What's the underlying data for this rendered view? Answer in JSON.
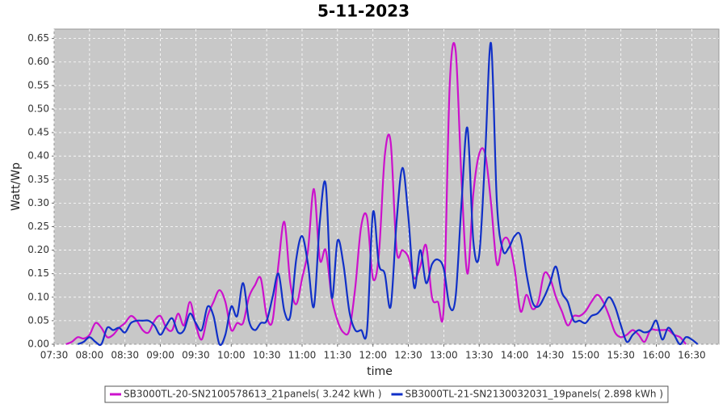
{
  "chart_data": {
    "type": "line",
    "title": "5-11-2023",
    "x_label": "time",
    "y_label": "Watt/Wp",
    "x": [
      "07:40",
      "07:45",
      "07:50",
      "07:55",
      "08:00",
      "08:05",
      "08:10",
      "08:15",
      "08:20",
      "08:25",
      "08:30",
      "08:35",
      "08:40",
      "08:45",
      "08:50",
      "08:55",
      "09:00",
      "09:05",
      "09:10",
      "09:15",
      "09:20",
      "09:25",
      "09:30",
      "09:35",
      "09:40",
      "09:45",
      "09:50",
      "09:55",
      "10:00",
      "10:05",
      "10:10",
      "10:15",
      "10:20",
      "10:25",
      "10:30",
      "10:35",
      "10:40",
      "10:45",
      "10:50",
      "10:55",
      "11:00",
      "11:05",
      "11:10",
      "11:15",
      "11:20",
      "11:25",
      "11:30",
      "11:35",
      "11:40",
      "11:45",
      "11:50",
      "11:55",
      "12:00",
      "12:05",
      "12:10",
      "12:15",
      "12:20",
      "12:25",
      "12:30",
      "12:35",
      "12:40",
      "12:45",
      "12:50",
      "12:55",
      "13:00",
      "13:05",
      "13:10",
      "13:15",
      "13:20",
      "13:25",
      "13:30",
      "13:35",
      "13:40",
      "13:45",
      "13:50",
      "13:55",
      "14:00",
      "14:05",
      "14:10",
      "14:15",
      "14:20",
      "14:25",
      "14:30",
      "14:35",
      "14:40",
      "14:45",
      "14:50",
      "14:55",
      "15:00",
      "15:05",
      "15:10",
      "15:15",
      "15:20",
      "15:25",
      "15:30",
      "15:35",
      "15:40",
      "15:45",
      "15:50",
      "15:55",
      "16:00",
      "16:05",
      "16:10",
      "16:15",
      "16:20",
      "16:25",
      "16:30",
      "16:35"
    ],
    "series": [
      {
        "name": "SB3000TL-20-SN2100578613_21panels( 3.242 kWh )",
        "color": "#cc11cc",
        "values": [
          0.0,
          0.005,
          0.015,
          0.012,
          0.02,
          0.045,
          0.035,
          0.015,
          0.02,
          0.035,
          0.045,
          0.06,
          0.05,
          0.03,
          0.025,
          0.05,
          0.06,
          0.035,
          0.03,
          0.065,
          0.04,
          0.09,
          0.04,
          0.01,
          0.06,
          0.09,
          0.115,
          0.09,
          0.03,
          0.045,
          0.045,
          0.1,
          0.125,
          0.14,
          0.06,
          0.05,
          0.17,
          0.26,
          0.13,
          0.085,
          0.14,
          0.2,
          0.33,
          0.18,
          0.2,
          0.1,
          0.05,
          0.025,
          0.03,
          0.12,
          0.25,
          0.27,
          0.14,
          0.19,
          0.4,
          0.43,
          0.2,
          0.2,
          0.185,
          0.14,
          0.165,
          0.21,
          0.1,
          0.09,
          0.08,
          0.55,
          0.625,
          0.35,
          0.15,
          0.32,
          0.405,
          0.405,
          0.3,
          0.17,
          0.22,
          0.22,
          0.16,
          0.07,
          0.105,
          0.075,
          0.09,
          0.15,
          0.14,
          0.1,
          0.07,
          0.04,
          0.06,
          0.06,
          0.07,
          0.09,
          0.105,
          0.09,
          0.06,
          0.025,
          0.015,
          0.02,
          0.03,
          0.02,
          0.005,
          0.03,
          0.03,
          0.03,
          0.03,
          0.02,
          0.015,
          0.0,
          null,
          null
        ]
      },
      {
        "name": "SB3000TL-21-SN2130032031_19panels( 2.898 kWh )",
        "color": "#1030c8",
        "values": [
          null,
          null,
          0.0,
          0.005,
          0.015,
          0.005,
          0.0,
          0.035,
          0.03,
          0.035,
          0.025,
          0.045,
          0.05,
          0.05,
          0.05,
          0.04,
          0.02,
          0.04,
          0.055,
          0.025,
          0.03,
          0.065,
          0.045,
          0.03,
          0.08,
          0.06,
          0.0,
          0.02,
          0.08,
          0.06,
          0.13,
          0.05,
          0.03,
          0.045,
          0.05,
          0.1,
          0.15,
          0.07,
          0.06,
          0.18,
          0.23,
          0.17,
          0.08,
          0.26,
          0.34,
          0.1,
          0.22,
          0.17,
          0.07,
          0.03,
          0.03,
          0.03,
          0.28,
          0.17,
          0.15,
          0.08,
          0.26,
          0.375,
          0.27,
          0.12,
          0.2,
          0.13,
          0.17,
          0.18,
          0.16,
          0.08,
          0.1,
          0.3,
          0.46,
          0.22,
          0.19,
          0.4,
          0.64,
          0.3,
          0.2,
          0.205,
          0.23,
          0.23,
          0.15,
          0.09,
          0.08,
          0.1,
          0.13,
          0.165,
          0.11,
          0.09,
          0.05,
          0.05,
          0.045,
          0.06,
          0.065,
          0.08,
          0.1,
          0.08,
          0.04,
          0.005,
          0.02,
          0.03,
          0.025,
          0.03,
          0.05,
          0.01,
          0.035,
          0.02,
          0.0,
          0.015,
          0.01,
          0.0
        ]
      }
    ],
    "xlim": [
      "07:30",
      "16:53"
    ],
    "xticks": [
      "07:30",
      "08:00",
      "08:30",
      "09:00",
      "09:30",
      "10:00",
      "10:30",
      "11:00",
      "11:30",
      "12:00",
      "12:30",
      "13:00",
      "13:30",
      "14:00",
      "14:30",
      "15:00",
      "15:30",
      "16:00",
      "16:30"
    ],
    "ylim": [
      0,
      0.67
    ],
    "yticks": [
      {
        "value": 0,
        "label": "0.00"
      },
      {
        "value": 0.05,
        "label": "0.05"
      },
      {
        "value": 0.1,
        "label": "0.10"
      },
      {
        "value": 0.15,
        "label": "0.15"
      },
      {
        "value": 0.2,
        "label": "0.20"
      },
      {
        "value": 0.25,
        "label": "0.25"
      },
      {
        "value": 0.3,
        "label": "0.30"
      },
      {
        "value": 0.35,
        "label": "0.35"
      },
      {
        "value": 0.4,
        "label": "0.40"
      },
      {
        "value": 0.45,
        "label": "0.45"
      },
      {
        "value": 0.5,
        "label": "0.50"
      },
      {
        "value": 0.55,
        "label": "0.55"
      },
      {
        "value": 0.6,
        "label": "0.60"
      },
      {
        "value": 0.65,
        "label": "0.65"
      }
    ],
    "grid": true,
    "legend": "bottom"
  }
}
